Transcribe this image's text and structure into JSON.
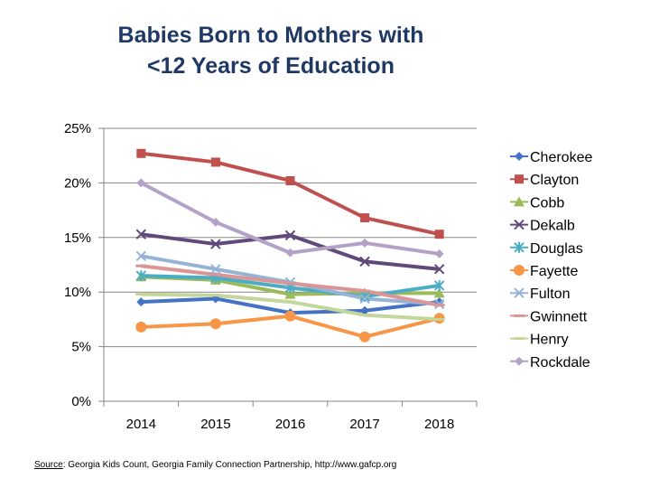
{
  "chart_data": {
    "type": "line",
    "title_lines": [
      "Babies Born to Mothers with",
      "<12 Years of Education"
    ],
    "categories": [
      "2014",
      "2015",
      "2016",
      "2017",
      "2018"
    ],
    "ylim": [
      0,
      25
    ],
    "yticks": [
      0,
      5,
      10,
      15,
      20,
      25
    ],
    "ytick_labels": [
      "0%",
      "5%",
      "10%",
      "15%",
      "20%",
      "25%"
    ],
    "grid": true,
    "legend_position": "right",
    "series": [
      {
        "name": "Cherokee",
        "marker": "diamond",
        "color": "#4472c4",
        "values": [
          9.1,
          9.4,
          8.1,
          8.3,
          9.1
        ]
      },
      {
        "name": "Clayton",
        "marker": "square",
        "color": "#c0504d",
        "values": [
          22.7,
          21.9,
          20.2,
          16.8,
          15.3
        ]
      },
      {
        "name": "Cobb",
        "marker": "triangle",
        "color": "#9bbb59",
        "values": [
          11.4,
          11.1,
          9.8,
          9.9,
          9.9
        ]
      },
      {
        "name": "Dekalb",
        "marker": "x",
        "color": "#604a7b",
        "values": [
          15.3,
          14.4,
          15.2,
          12.8,
          12.1
        ]
      },
      {
        "name": "Douglas",
        "marker": "asterisk",
        "color": "#4bacc6",
        "values": [
          11.5,
          11.3,
          10.4,
          9.6,
          10.6
        ]
      },
      {
        "name": "Fayette",
        "marker": "circle",
        "color": "#f79646",
        "values": [
          6.8,
          7.1,
          7.8,
          5.9,
          7.6
        ]
      },
      {
        "name": "Fulton",
        "marker": "x",
        "color": "#95b3d7",
        "values": [
          13.3,
          12.1,
          10.9,
          9.4,
          8.9
        ]
      },
      {
        "name": "Gwinnett",
        "marker": "dash",
        "color": "#d99694",
        "values": [
          12.4,
          11.6,
          10.8,
          10.1,
          8.8
        ]
      },
      {
        "name": "Henry",
        "marker": "dash",
        "color": "#c3d69b",
        "values": [
          9.8,
          9.7,
          9.1,
          7.9,
          7.5
        ]
      },
      {
        "name": "Rockdale",
        "marker": "diamond",
        "color": "#b3a2c7",
        "values": [
          20.0,
          16.4,
          13.6,
          14.5,
          13.5
        ]
      }
    ]
  },
  "source": {
    "label": "Source",
    "text": ": Georgia Kids Count, Georgia Family Connection Partnership, http://www.gafcp.org"
  }
}
